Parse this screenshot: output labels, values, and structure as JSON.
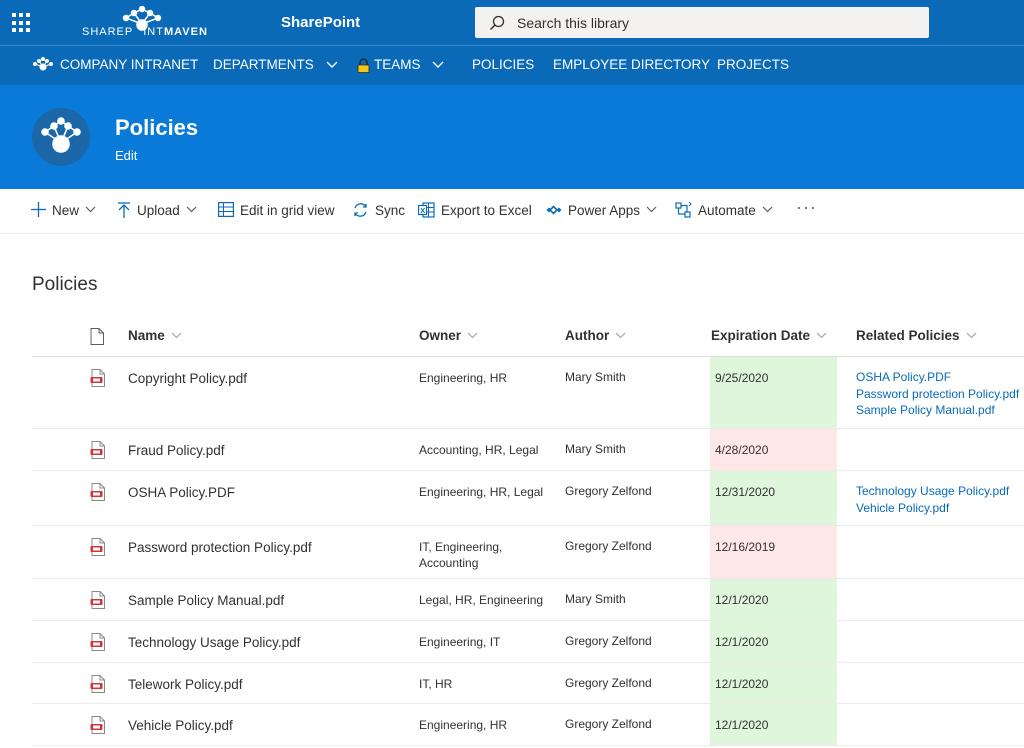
{
  "suite": {
    "logo_prefix": "SHAREP",
    "logo_middle": "INT",
    "logo_suffix": "MAVEN",
    "app_name": "SharePoint",
    "search_placeholder": "Search this library"
  },
  "nav": {
    "items": [
      {
        "label": "COMPANY INTRANET"
      },
      {
        "label": "DEPARTMENTS"
      },
      {
        "label": "TEAMS"
      },
      {
        "label": "POLICIES"
      },
      {
        "label": "EMPLOYEE DIRECTORY"
      },
      {
        "label": "PROJECTS"
      }
    ]
  },
  "site": {
    "title": "Policies",
    "edit_label": "Edit"
  },
  "commands": {
    "new": "New",
    "upload": "Upload",
    "edit_grid": "Edit in grid view",
    "sync": "Sync",
    "export": "Export to Excel",
    "power_apps": "Power Apps",
    "automate": "Automate",
    "more": "···"
  },
  "list": {
    "title": "Policies",
    "columns": {
      "name": "Name",
      "owner": "Owner",
      "author": "Author",
      "expiration": "Expiration Date",
      "related": "Related Policies"
    },
    "rows": [
      {
        "name": "Copyright Policy.pdf",
        "owner": "Engineering, HR",
        "author": "Mary Smith",
        "expiration": "9/25/2020",
        "related": [
          "OSHA Policy.PDF",
          "Password protection Policy.pdf",
          "Sample Policy Manual.pdf"
        ]
      },
      {
        "name": "Fraud Policy.pdf",
        "owner": "Accounting, HR, Legal",
        "author": "Mary Smith",
        "expiration": "4/28/2020",
        "related": []
      },
      {
        "name": "OSHA Policy.PDF",
        "owner": "Engineering, HR, Legal",
        "author": "Gregory Zelfond",
        "expiration": "12/31/2020",
        "related": [
          "Technology Usage Policy.pdf",
          "Vehicle Policy.pdf"
        ]
      },
      {
        "name": "Password protection Policy.pdf",
        "owner": "IT, Engineering, Accounting",
        "author": "Gregory Zelfond",
        "expiration": "12/16/2019",
        "related": []
      },
      {
        "name": "Sample Policy Manual.pdf",
        "owner": "Legal, HR, Engineering",
        "author": "Mary Smith",
        "expiration": "12/1/2020",
        "related": []
      },
      {
        "name": "Technology Usage Policy.pdf",
        "owner": "Engineering, IT",
        "author": "Gregory Zelfond",
        "expiration": "12/1/2020",
        "related": []
      },
      {
        "name": "Telework Policy.pdf",
        "owner": "IT, HR",
        "author": "Gregory Zelfond",
        "expiration": "12/1/2020",
        "related": []
      },
      {
        "name": "Vehicle Policy.pdf",
        "owner": "Engineering, HR",
        "author": "Gregory Zelfond",
        "expiration": "12/1/2020",
        "related": []
      }
    ]
  },
  "colors": {
    "suite_blue": "#0a6ab8",
    "header_blue": "#0a7ad8",
    "expired_bg": "#fde7e9",
    "valid_bg": "#dff6dd",
    "link": "#0a6ab8"
  }
}
